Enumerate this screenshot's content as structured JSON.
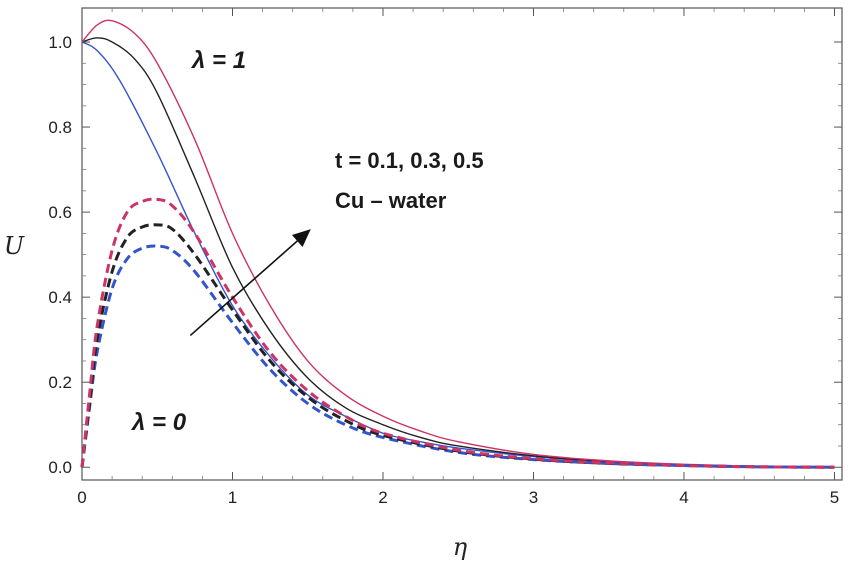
{
  "chart_data": {
    "type": "line",
    "title": "",
    "xlabel": "η",
    "ylabel": "U",
    "xlim": [
      0,
      5.05
    ],
    "ylim": [
      -0.03,
      1.08
    ],
    "grid": false,
    "x_ticks": [
      0,
      1,
      2,
      3,
      4,
      5
    ],
    "y_ticks": [
      0.0,
      0.2,
      0.4,
      0.6,
      0.8,
      1.0
    ],
    "x_tick_labels": [
      "0",
      "1",
      "2",
      "3",
      "4",
      "5"
    ],
    "y_tick_labels": [
      "0.0",
      "0.2",
      "0.4",
      "0.6",
      "0.8",
      "1.0"
    ],
    "annotations": {
      "lambda1": "λ = 1",
      "lambda0": "λ = 0",
      "t_values": "t = 0.1, 0.3, 0.5",
      "fluid": "Cu  – water"
    },
    "series": [
      {
        "group": "λ = 1",
        "t": 0.1,
        "color": "#3355cc",
        "dash": false,
        "x": [
          0,
          0.1,
          0.25,
          0.5,
          0.75,
          1.0,
          1.25,
          1.5,
          1.75,
          2.0,
          2.25,
          2.5,
          3.0,
          3.5,
          4.0,
          4.5,
          5.0
        ],
        "y": [
          1.0,
          0.98,
          0.91,
          0.74,
          0.55,
          0.38,
          0.26,
          0.17,
          0.12,
          0.08,
          0.06,
          0.045,
          0.025,
          0.012,
          0.005,
          0.002,
          0.0
        ]
      },
      {
        "group": "λ = 1",
        "t": 0.3,
        "color": "#222222",
        "dash": false,
        "x": [
          0,
          0.1,
          0.2,
          0.35,
          0.5,
          0.75,
          1.0,
          1.25,
          1.5,
          1.75,
          2.0,
          2.25,
          2.5,
          3.0,
          3.5,
          4.0,
          4.5,
          5.0
        ],
        "y": [
          1.0,
          1.01,
          1.0,
          0.96,
          0.88,
          0.68,
          0.47,
          0.32,
          0.21,
          0.14,
          0.1,
          0.07,
          0.05,
          0.027,
          0.013,
          0.006,
          0.002,
          0.0
        ]
      },
      {
        "group": "λ = 1",
        "t": 0.5,
        "color": "#cc3366",
        "dash": false,
        "x": [
          0,
          0.1,
          0.2,
          0.35,
          0.5,
          0.75,
          1.0,
          1.25,
          1.5,
          1.75,
          2.0,
          2.25,
          2.5,
          3.0,
          3.5,
          4.0,
          4.5,
          5.0
        ],
        "y": [
          1.0,
          1.04,
          1.05,
          1.02,
          0.95,
          0.77,
          0.55,
          0.38,
          0.25,
          0.17,
          0.12,
          0.085,
          0.06,
          0.03,
          0.015,
          0.007,
          0.002,
          0.0
        ]
      },
      {
        "group": "λ = 0",
        "t": 0.1,
        "color": "#3355cc",
        "dash": true,
        "x": [
          0,
          0.05,
          0.1,
          0.2,
          0.3,
          0.4,
          0.5,
          0.6,
          0.75,
          1.0,
          1.25,
          1.5,
          1.75,
          2.0,
          2.5,
          3.0,
          3.5,
          4.0,
          4.5,
          5.0
        ],
        "y": [
          0.0,
          0.14,
          0.27,
          0.42,
          0.49,
          0.515,
          0.52,
          0.51,
          0.46,
          0.34,
          0.23,
          0.15,
          0.1,
          0.07,
          0.035,
          0.018,
          0.009,
          0.004,
          0.001,
          0.0
        ]
      },
      {
        "group": "λ = 0",
        "t": 0.3,
        "color": "#222222",
        "dash": true,
        "x": [
          0,
          0.05,
          0.1,
          0.2,
          0.3,
          0.4,
          0.5,
          0.6,
          0.75,
          1.0,
          1.25,
          1.5,
          1.75,
          2.0,
          2.5,
          3.0,
          3.5,
          4.0,
          4.5,
          5.0
        ],
        "y": [
          0.0,
          0.15,
          0.3,
          0.46,
          0.54,
          0.565,
          0.57,
          0.56,
          0.5,
          0.37,
          0.25,
          0.165,
          0.11,
          0.075,
          0.038,
          0.019,
          0.009,
          0.004,
          0.001,
          0.0
        ]
      },
      {
        "group": "λ = 0",
        "t": 0.5,
        "color": "#cc3366",
        "dash": true,
        "x": [
          0,
          0.05,
          0.1,
          0.2,
          0.3,
          0.4,
          0.5,
          0.6,
          0.75,
          1.0,
          1.25,
          1.5,
          1.75,
          2.0,
          2.5,
          3.0,
          3.5,
          4.0,
          4.5,
          5.0
        ],
        "y": [
          0.0,
          0.17,
          0.33,
          0.51,
          0.6,
          0.625,
          0.63,
          0.615,
          0.55,
          0.4,
          0.27,
          0.18,
          0.12,
          0.08,
          0.04,
          0.02,
          0.01,
          0.004,
          0.001,
          0.0
        ]
      }
    ],
    "arrow": {
      "from": [
        0.72,
        0.31
      ],
      "to": [
        1.52,
        0.56
      ]
    }
  }
}
